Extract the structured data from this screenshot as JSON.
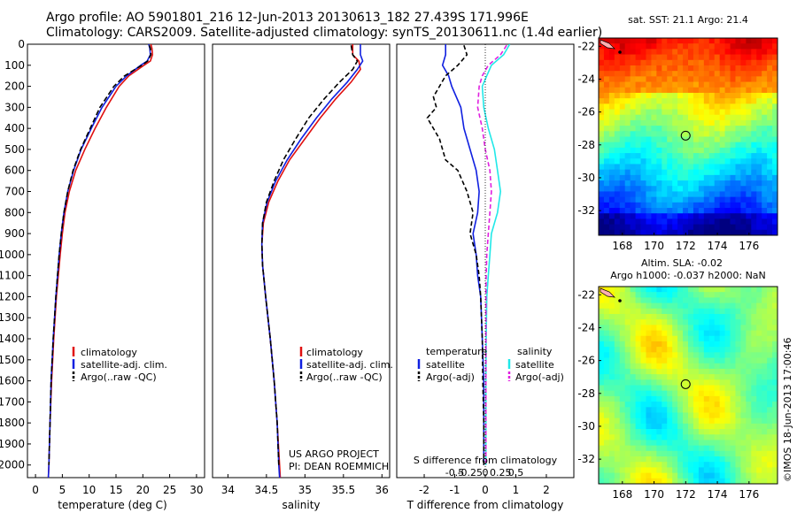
{
  "header": {
    "title_line1": "Argo profile: AO 5901801_216 12-Jun-2013 20130613_182 27.439S 171.996E",
    "title_line2": "Climatology: CARS2009. Satellite-adjusted climatology: synTS_20130611.nc (1.4d earlier)"
  },
  "colors": {
    "climatology": "#e01010",
    "satellite": "#1020e0",
    "argo": "#000000",
    "sal_satellite": "#20e8e8",
    "sal_argo": "#e020e0"
  },
  "depth_ticks": [
    0,
    100,
    200,
    300,
    400,
    500,
    600,
    700,
    800,
    900,
    1000,
    1100,
    1200,
    1300,
    1400,
    1500,
    1600,
    1700,
    1800,
    1900,
    2000
  ],
  "chart_data": [
    {
      "type": "line",
      "id": "temperature",
      "xlabel": "temperature (deg C)",
      "xticks": [
        0,
        5,
        10,
        15,
        20,
        25,
        30
      ],
      "xlim": [
        -1.5,
        31.5
      ],
      "ylim": [
        0,
        2060
      ],
      "legend": [
        "climatology",
        "satellite-adj. clim.",
        "Argo(..raw -QC)"
      ],
      "series": [
        {
          "name": "climatology",
          "depth": [
            0,
            20,
            50,
            80,
            100,
            150,
            200,
            300,
            400,
            500,
            600,
            700,
            800,
            900,
            1000,
            1200,
            1400,
            1600,
            1800,
            2000,
            2060
          ],
          "values": [
            21.5,
            21.7,
            21.8,
            21.4,
            20.2,
            17.4,
            15.6,
            13.2,
            11.1,
            9.2,
            7.5,
            6.3,
            5.5,
            5.0,
            4.6,
            3.9,
            3.4,
            3.0,
            2.7,
            2.5,
            2.4
          ]
        },
        {
          "name": "satellite-adj. clim.",
          "depth": [
            0,
            20,
            50,
            80,
            100,
            150,
            200,
            300,
            400,
            500,
            600,
            700,
            800,
            900,
            1000,
            1200,
            1400,
            1600,
            1800,
            2000,
            2060
          ],
          "values": [
            21.1,
            21.3,
            21.4,
            20.8,
            19.6,
            17.0,
            15.0,
            12.4,
            10.4,
            8.5,
            7.1,
            6.0,
            5.3,
            4.8,
            4.4,
            3.8,
            3.3,
            2.9,
            2.7,
            2.5,
            2.4
          ]
        },
        {
          "name": "Argo(..raw -QC)",
          "depth": [
            5,
            20,
            50,
            80,
            100,
            150,
            200,
            300,
            400,
            500,
            600,
            700,
            800,
            900,
            1000,
            1200,
            1400,
            1600,
            1800,
            2000
          ],
          "values": [
            21.2,
            21.4,
            21.5,
            20.9,
            19.8,
            16.6,
            14.6,
            12.0,
            10.2,
            8.4,
            7.0,
            6.0,
            5.3,
            4.8,
            4.4,
            3.8,
            3.3,
            2.9,
            2.7,
            2.5
          ]
        }
      ]
    },
    {
      "type": "line",
      "id": "salinity",
      "xlabel": "salinity",
      "xticks": [
        34,
        34.5,
        35,
        35.5,
        36
      ],
      "xlim": [
        33.8,
        36.1
      ],
      "ylim": [
        0,
        2060
      ],
      "legend": [
        "climatology",
        "satellite-adj. clim.",
        "Argo(..raw -QC)"
      ],
      "annotation": [
        "US ARGO PROJECT",
        "PI: DEAN ROEMMICH"
      ],
      "series": [
        {
          "name": "climatology",
          "depth": [
            0,
            50,
            80,
            120,
            180,
            260,
            350,
            450,
            550,
            650,
            750,
            850,
            950,
            1050,
            1200,
            1400,
            1600,
            1800,
            2000,
            2060
          ],
          "values": [
            35.62,
            35.62,
            35.7,
            35.72,
            35.6,
            35.4,
            35.2,
            35.0,
            34.8,
            34.65,
            34.53,
            34.46,
            34.44,
            34.45,
            34.49,
            34.55,
            34.6,
            34.64,
            34.67,
            34.68
          ]
        },
        {
          "name": "satellite-adj. clim.",
          "depth": [
            0,
            50,
            80,
            120,
            180,
            260,
            350,
            450,
            550,
            650,
            750,
            850,
            950,
            1050,
            1200,
            1400,
            1600,
            1800,
            2000,
            2060
          ],
          "values": [
            35.72,
            35.72,
            35.75,
            35.68,
            35.55,
            35.35,
            35.15,
            34.95,
            34.77,
            34.62,
            34.51,
            34.45,
            34.44,
            34.45,
            34.49,
            34.55,
            34.6,
            34.64,
            34.66,
            34.67
          ]
        },
        {
          "name": "Argo(..raw -QC)",
          "depth": [
            5,
            50,
            80,
            120,
            180,
            260,
            350,
            450,
            550,
            650,
            750,
            850,
            950,
            1050,
            1200,
            1400,
            1600,
            1800,
            2000
          ],
          "values": [
            35.6,
            35.62,
            35.68,
            35.62,
            35.45,
            35.25,
            35.05,
            34.88,
            34.72,
            34.6,
            34.5,
            34.45,
            34.44,
            34.45,
            34.49,
            34.55,
            34.6,
            34.64,
            34.66
          ]
        }
      ]
    },
    {
      "type": "line",
      "id": "difference",
      "xlabel_T": "T difference from climatology",
      "xlabel_S": "S difference from climatology",
      "xticks_T": [
        -2,
        -1,
        0,
        1,
        2
      ],
      "xticklabels_S": [
        "-0.5",
        "-0.25",
        "0",
        "0.25",
        "0.5"
      ],
      "xlim": [
        -2.9,
        2.9
      ],
      "ylim": [
        0,
        2060
      ],
      "legend_headers": [
        "temperature",
        "salinity"
      ],
      "legend": [
        "satellite",
        "Argo(-adj)",
        "satellite",
        "Argo(-adj)"
      ],
      "series": [
        {
          "name": "satellite",
          "group": "temperature",
          "depth": [
            0,
            50,
            100,
            150,
            200,
            300,
            400,
            500,
            600,
            700,
            800,
            900,
            1000,
            1100,
            1200,
            1400,
            1600,
            1800,
            2000
          ],
          "values": [
            -1.3,
            -1.3,
            -1.4,
            -1.2,
            -1.1,
            -0.8,
            -0.7,
            -0.5,
            -0.3,
            -0.2,
            -0.25,
            -0.4,
            -0.3,
            -0.25,
            -0.15,
            -0.1,
            -0.05,
            -0.05,
            -0.05
          ]
        },
        {
          "name": "Argo(-adj)",
          "group": "temperature",
          "depth": [
            5,
            50,
            100,
            150,
            200,
            250,
            300,
            350,
            400,
            450,
            500,
            550,
            600,
            700,
            800,
            900,
            1000,
            1100,
            1200,
            1400,
            1600,
            1800,
            2000
          ],
          "values": [
            -0.7,
            -0.6,
            -0.9,
            -1.3,
            -1.5,
            -1.7,
            -1.6,
            -1.9,
            -1.7,
            -1.5,
            -1.4,
            -1.3,
            -0.9,
            -0.6,
            -0.4,
            -0.5,
            -0.3,
            -0.2,
            -0.15,
            -0.1,
            -0.08,
            -0.05,
            -0.05
          ]
        },
        {
          "name": "satellite",
          "group": "salinity",
          "depth": [
            0,
            50,
            100,
            150,
            200,
            300,
            400,
            500,
            600,
            700,
            800,
            900,
            1000,
            1100,
            1200,
            1400,
            1600,
            1800,
            2000
          ],
          "values": [
            0.8,
            0.6,
            0.2,
            0.05,
            -0.1,
            -0.05,
            0.1,
            0.3,
            0.4,
            0.5,
            0.4,
            0.2,
            0.15,
            0.1,
            0.05,
            0.03,
            0.02,
            0.02,
            0.02
          ]
        },
        {
          "name": "Argo(-adj)",
          "group": "salinity",
          "depth": [
            5,
            50,
            100,
            150,
            200,
            300,
            400,
            500,
            600,
            700,
            800,
            900,
            1000,
            1100,
            1200,
            1400,
            1600,
            1800,
            2000
          ],
          "values": [
            0.7,
            0.5,
            0.1,
            -0.1,
            -0.2,
            -0.25,
            -0.1,
            0.0,
            0.15,
            0.2,
            0.15,
            0.1,
            0.05,
            0.03,
            0.02,
            0.02,
            0.02,
            0.02,
            0.02
          ]
        }
      ]
    },
    {
      "type": "heatmap",
      "id": "sst-map",
      "title": "sat. SST: 21.1  Argo: 21.4",
      "xticks": [
        168,
        170,
        172,
        174,
        176
      ],
      "yticks": [
        -22,
        -24,
        -26,
        -28,
        -30,
        -32
      ],
      "xlim": [
        166.5,
        177.8
      ],
      "ylim": [
        -33.5,
        -21.5
      ],
      "argo_position": {
        "lon": 171.996,
        "lat": -27.439
      },
      "colormap": "jet"
    },
    {
      "type": "heatmap",
      "id": "sla-map",
      "title_line1": "Altim. SLA: -0.02",
      "title_line2": "Argo h1000: -0.037 h2000: NaN",
      "xticks": [
        168,
        170,
        172,
        174,
        176
      ],
      "yticks": [
        -22,
        -24,
        -26,
        -28,
        -30,
        -32
      ],
      "xlim": [
        166.5,
        177.8
      ],
      "ylim": [
        -33.5,
        -21.5
      ],
      "argo_position": {
        "lon": 171.996,
        "lat": -27.439
      },
      "colormap": "jet"
    }
  ],
  "footer_stamp": "©IMOS 18-Jun-2013 17:00:46"
}
